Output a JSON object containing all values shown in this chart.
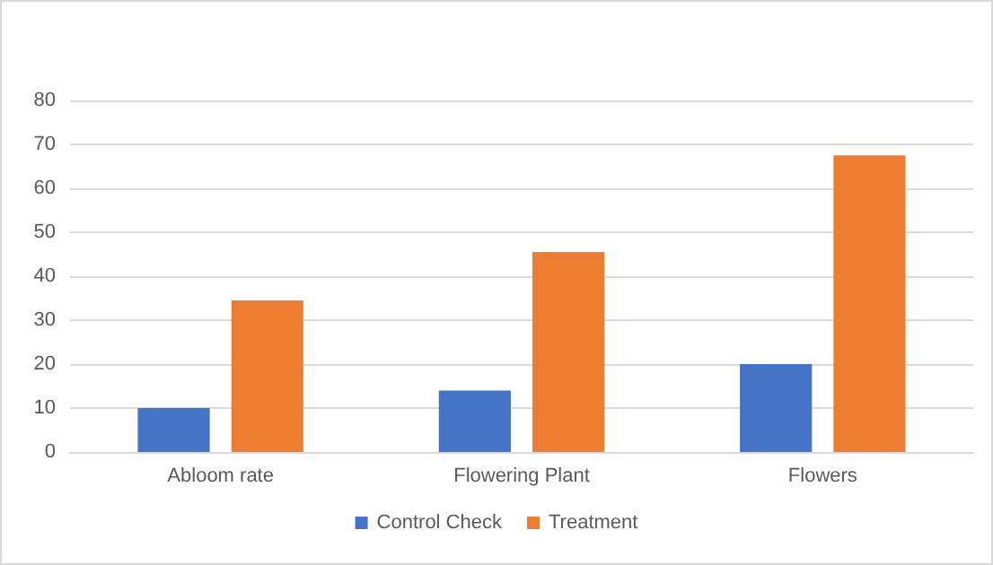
{
  "chart_data": {
    "type": "bar",
    "categories": [
      "Abloom rate",
      "Flowering Plant",
      "Flowers"
    ],
    "series": [
      {
        "name": "Control Check",
        "color": "#4472c4",
        "values": [
          10,
          14,
          20
        ]
      },
      {
        "name": "Treatment",
        "color": "#ed7d31",
        "values": [
          34.5,
          45.5,
          67.5
        ]
      }
    ],
    "ylim": [
      0,
      80
    ],
    "yticks": [
      0,
      10,
      20,
      30,
      40,
      50,
      60,
      70,
      80
    ],
    "grid": "y",
    "legend": "bottom"
  }
}
